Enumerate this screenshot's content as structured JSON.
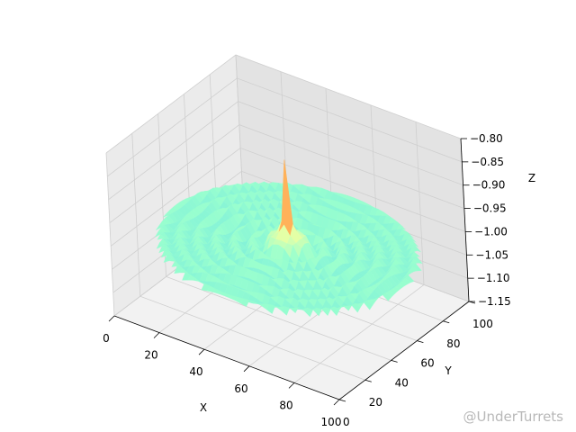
{
  "chart_data": {
    "type": "surface",
    "title": "",
    "xlabel": "X",
    "ylabel": "Y",
    "zlabel": "Z",
    "x_ticks": [
      "0",
      "20",
      "40",
      "60",
      "80",
      "100"
    ],
    "y_ticks": [
      "0",
      "20",
      "40",
      "60",
      "80",
      "100"
    ],
    "z_ticks": [
      "−1.15",
      "−1.10",
      "−1.05",
      "−1.00",
      "−0.95",
      "−0.90",
      "−0.85",
      "−0.80"
    ],
    "xlim": [
      0,
      100
    ],
    "ylim": [
      0,
      100
    ],
    "zlim": [
      -1.15,
      -0.8
    ],
    "center": [
      50,
      50
    ],
    "base_z": -1.02,
    "peak_z": -0.83,
    "ring_amplitude": 0.015,
    "colormap": "rainbow",
    "grid": true
  },
  "watermark": "@UnderTurrets"
}
